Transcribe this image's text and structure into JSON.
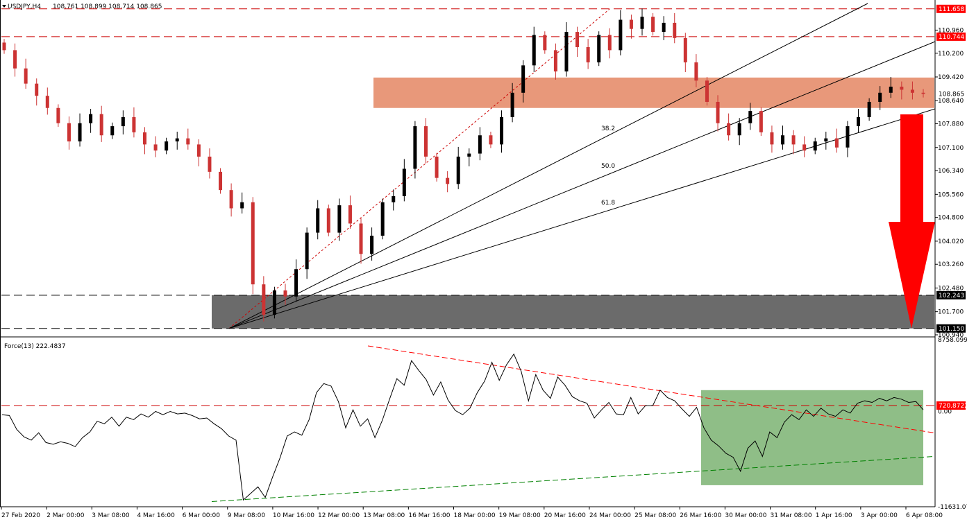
{
  "header": {
    "symbol": "USDJPY,H4",
    "ohlc": "108.761 108.899 108.714 108.865",
    "indicator": "Force(13) 222.4837"
  },
  "colors": {
    "bull": "#000000",
    "bear": "#cc3333",
    "resistance_zone": "#e8987a",
    "support_zone": "#6b6b6b",
    "indicator_zone": "#8fbe87",
    "level_line": "#cc0000",
    "arrow": "#ff0000",
    "red_tag": "#ff0000",
    "black_tag": "#000000"
  },
  "chart_data": [
    {
      "type": "candlestick",
      "name": "USDJPY,H4",
      "ylim": [
        100.94,
        111.95
      ],
      "price_axis_labels": [
        "110.960",
        "110.200",
        "109.420",
        "108.640",
        "107.880",
        "107.100",
        "106.340",
        "105.560",
        "104.800",
        "104.020",
        "103.260",
        "102.480",
        "101.700",
        "100.940"
      ],
      "time_axis_labels": [
        "27 Feb 2020",
        "2 Mar 00:00",
        "3 Mar 08:00",
        "4 Mar 16:00",
        "6 Mar 00:00",
        "9 Mar 08:00",
        "10 Mar 16:00",
        "12 Mar 00:00",
        "13 Mar 08:00",
        "16 Mar 16:00",
        "18 Mar 00:00",
        "19 Mar 08:00",
        "20 Mar 16:00",
        "24 Mar 00:00",
        "25 Mar 08:00",
        "26 Mar 16:00",
        "30 Mar 00:00",
        "31 Mar 08:00",
        "1 Apr 16:00",
        "3 Apr 00:00",
        "6 Apr 08:00"
      ],
      "close_path": [
        110.3,
        109.7,
        109.2,
        108.8,
        108.4,
        107.9,
        107.3,
        107.9,
        108.2,
        107.5,
        107.8,
        108.1,
        107.6,
        107.2,
        107.0,
        107.3,
        107.4,
        107.2,
        106.8,
        106.3,
        105.7,
        105.1,
        105.3,
        102.6,
        101.6,
        102.4,
        102.2,
        103.1,
        104.3,
        105.1,
        104.3,
        105.2,
        104.6,
        103.6,
        104.2,
        105.3,
        105.5,
        106.4,
        107.8,
        106.8,
        106.1,
        105.9,
        106.8,
        106.9,
        107.5,
        107.2,
        108.1,
        108.9,
        109.8,
        110.8,
        110.3,
        109.6,
        110.9,
        110.4,
        109.9,
        110.8,
        110.3,
        111.3,
        111.0,
        111.4,
        110.9,
        111.2,
        110.7,
        109.9,
        109.3,
        108.6,
        107.9,
        107.5,
        107.9,
        108.3,
        107.6,
        107.2,
        107.5,
        107.2,
        107.0,
        107.3,
        107.4,
        107.1,
        107.8,
        108.1,
        108.6,
        108.9,
        109.1,
        109.0,
        108.9,
        108.865
      ],
      "levels": [
        {
          "label": "111.658",
          "value": 111.658,
          "tag": "red"
        },
        {
          "label": "110.744",
          "value": 110.744,
          "tag": "red"
        },
        {
          "label": "102.243",
          "value": 102.243,
          "tag": "black"
        },
        {
          "label": "101.150",
          "value": 101.15,
          "tag": "black"
        }
      ],
      "current_price": {
        "label": "108.865",
        "value": 108.865
      },
      "resistance_zone": [
        108.4,
        109.4
      ],
      "support_zone": [
        101.15,
        102.243
      ],
      "fib_labels": [
        "38.2",
        "50.0",
        "61.8"
      ]
    },
    {
      "type": "line",
      "name": "Force(13) 222.4837",
      "ylim": [
        -11631.07,
        8758.0996
      ],
      "axis_labels": [
        {
          "label": "8758.0996",
          "value": 8758.0996
        },
        {
          "label": "0.00",
          "value": 0
        },
        {
          "label": "-11631.07",
          "value": -11631.07
        }
      ],
      "level": {
        "label": "720.8722",
        "value": 720.8722
      },
      "values": [
        -400,
        -500,
        -2200,
        -3100,
        -3500,
        -2600,
        -3800,
        -4000,
        -3700,
        -3900,
        -4300,
        -3200,
        -2500,
        -1200,
        -1500,
        -700,
        -1800,
        -700,
        -1000,
        -300,
        -700,
        0,
        -400,
        0,
        -300,
        -200,
        -500,
        -900,
        -800,
        -1500,
        -2100,
        -3000,
        -3500,
        -10800,
        -10000,
        -9200,
        -10500,
        -8000,
        -5700,
        -3000,
        -2500,
        -2900,
        -1000,
        2300,
        3400,
        3100,
        1200,
        -2000,
        200,
        -1800,
        -900,
        -3200,
        -1100,
        1500,
        4000,
        3200,
        6200,
        5000,
        3900,
        2000,
        3600,
        1400,
        100,
        -400,
        400,
        2300,
        3700,
        6000,
        3800,
        5700,
        7000,
        4900,
        1300,
        4500,
        2600,
        1600,
        4200,
        3200,
        1800,
        1300,
        1000,
        -800,
        200,
        1100,
        -300,
        -400,
        1700,
        -300,
        700,
        700,
        2600,
        1700,
        1300,
        300,
        -600,
        500,
        -2000,
        -3500,
        -4200,
        -5100,
        -5600,
        -7300,
        -4500,
        -3600,
        -5500,
        -2500,
        -3200,
        -1300,
        -400,
        -1000,
        200,
        -600,
        400,
        -300,
        -600,
        200,
        -200,
        1000,
        1300,
        1100,
        1600,
        1300,
        1700,
        1500,
        1100,
        1200,
        200
      ]
    }
  ]
}
